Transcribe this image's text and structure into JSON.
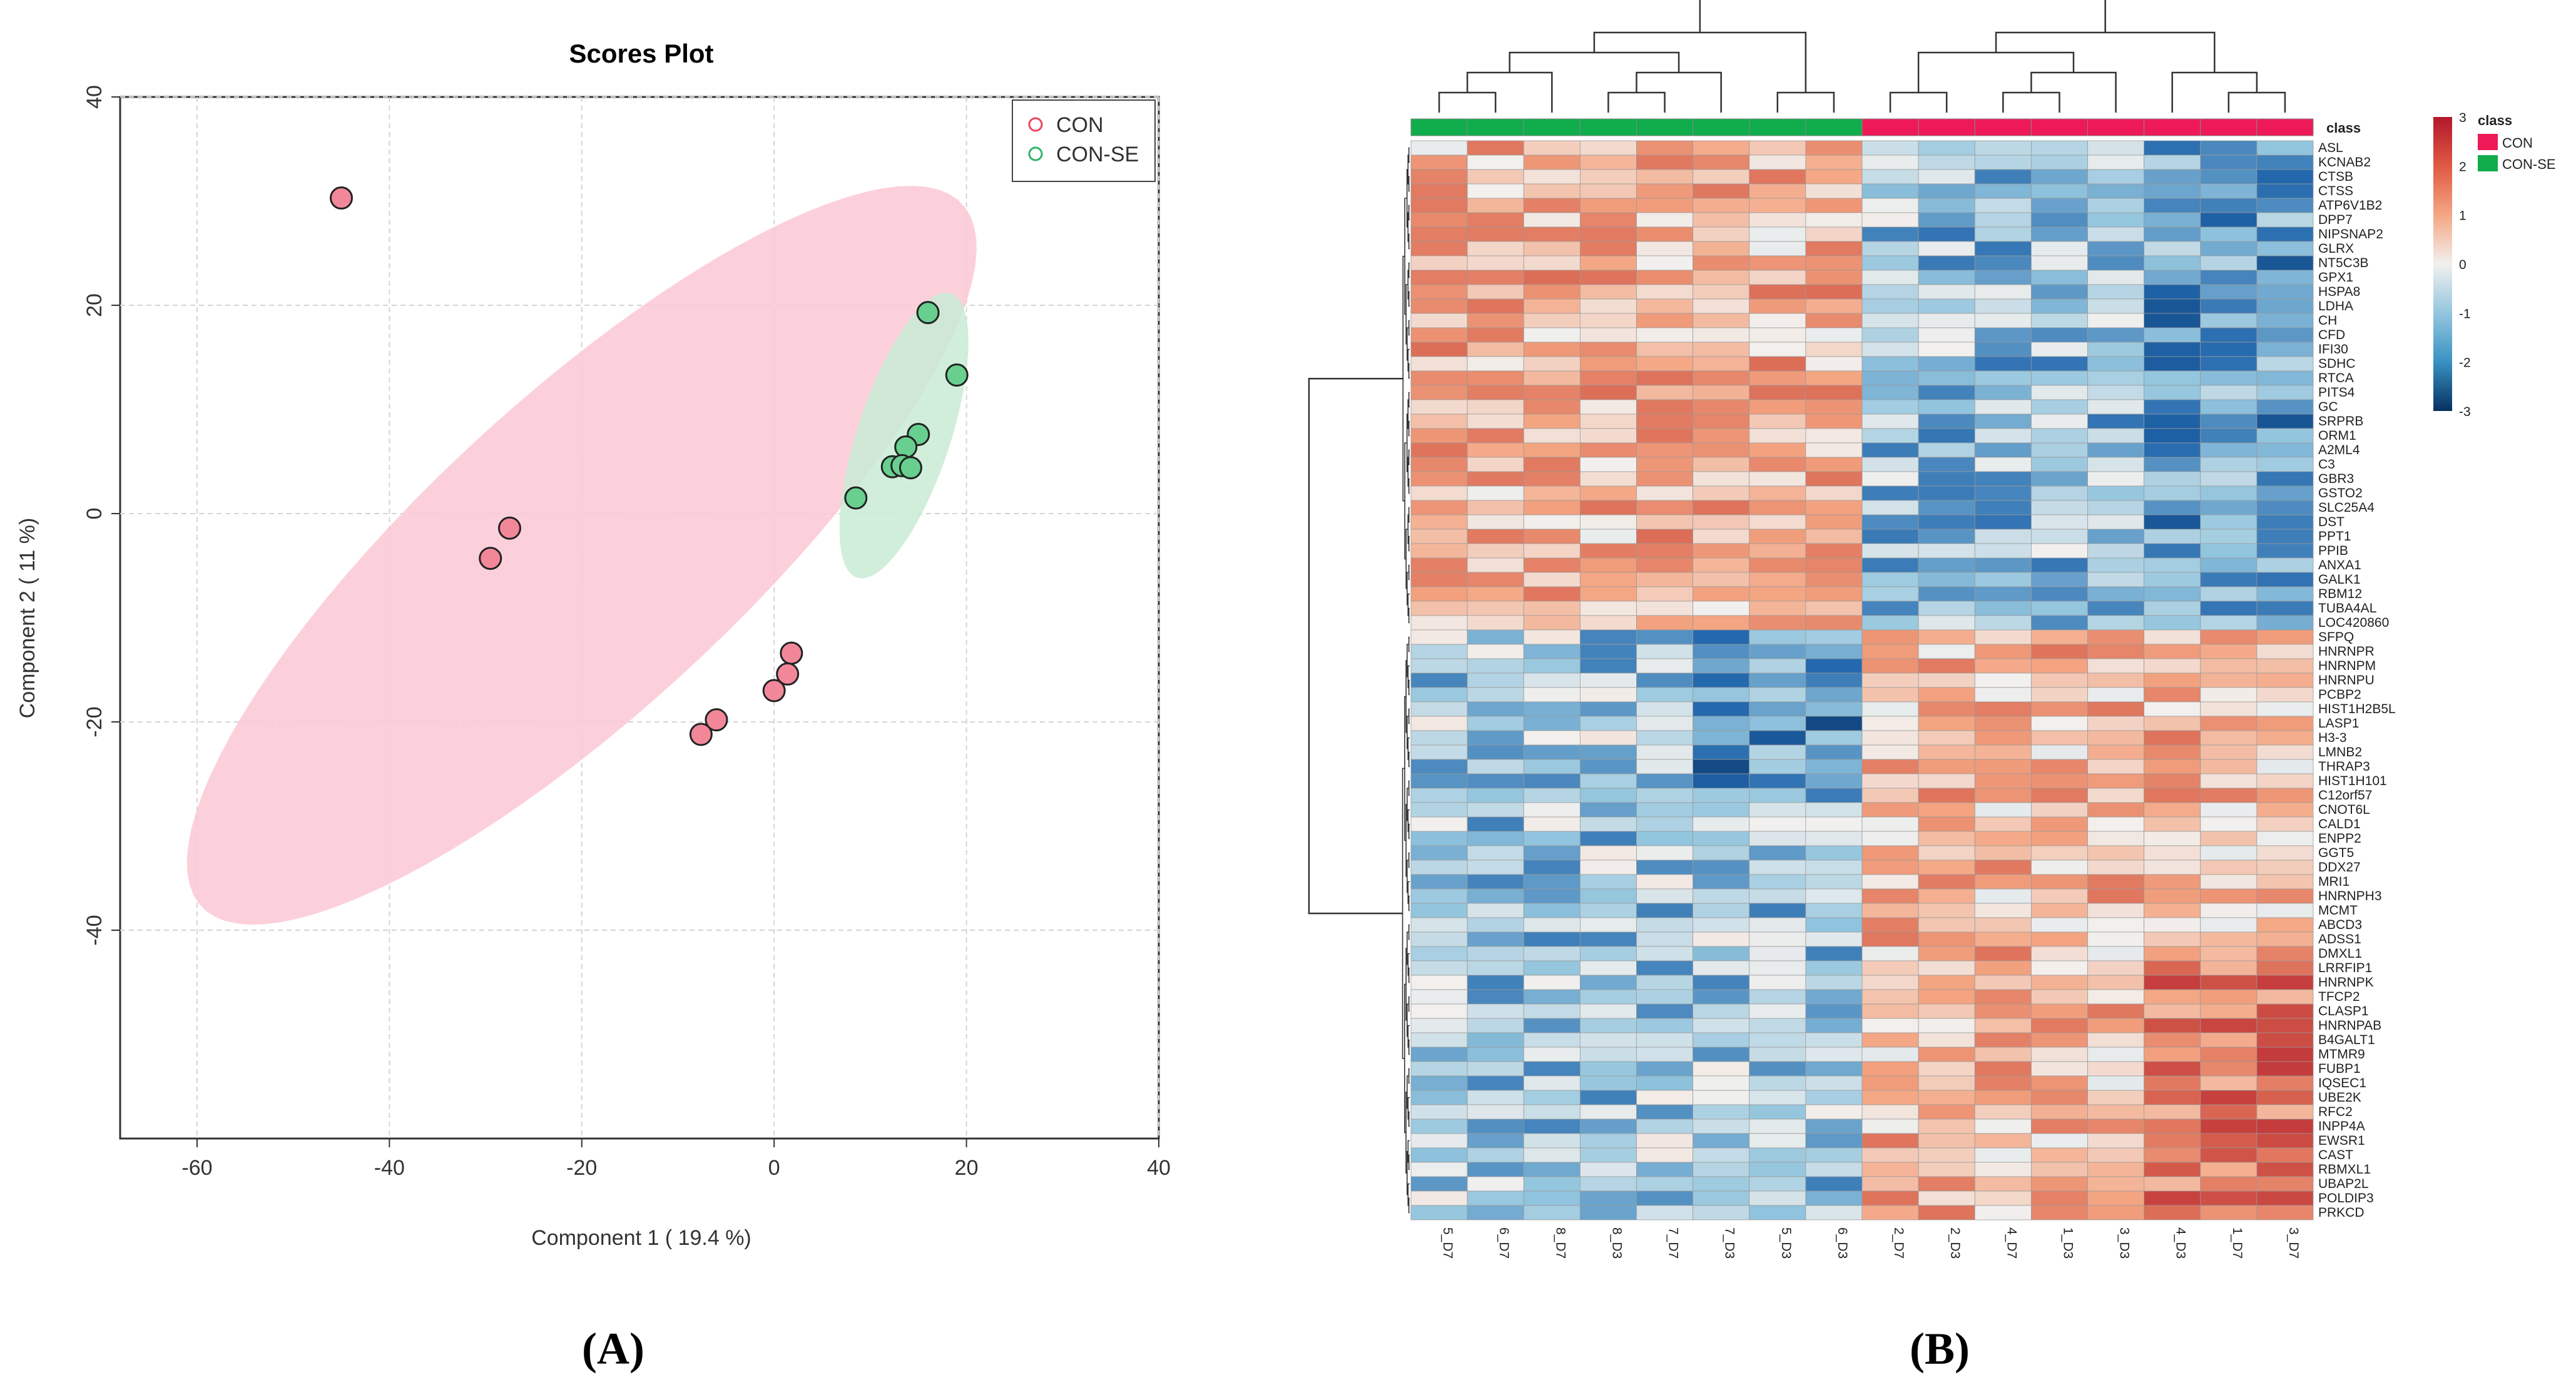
{
  "figure": {
    "panel_labels": [
      "(A)",
      "(B)"
    ]
  },
  "chart_data": [
    {
      "type": "scatter",
      "title": "Scores Plot",
      "xlabel": "Component 1 ( 19.4 %)",
      "ylabel": "Component 2 ( 11 %)",
      "xlim": [
        -68,
        40
      ],
      "ylim": [
        -60,
        40
      ],
      "xticks": [
        -60,
        -40,
        -20,
        0,
        20,
        40
      ],
      "yticks": [
        -40,
        -20,
        0,
        20,
        40
      ],
      "grid": true,
      "legend_position": "top-right",
      "series": [
        {
          "name": "CON",
          "color": "#f3879a",
          "legend_color": "#e8475f",
          "ellipse": {
            "center": [
              -20,
              -4
            ],
            "semi_major": 52,
            "semi_minor": 15.5,
            "angle_deg": 40
          },
          "points": [
            [
              -45,
              30.3
            ],
            [
              -27.5,
              -1.4
            ],
            [
              -29.5,
              -4.3
            ],
            [
              1.8,
              -13.4
            ],
            [
              1.4,
              -15.4
            ],
            [
              0,
              -17
            ],
            [
              -6,
              -19.8
            ],
            [
              -7.6,
              -21.2
            ]
          ]
        },
        {
          "name": "CON-SE",
          "color": "#68cf8e",
          "legend_color": "#2fb567",
          "ellipse": {
            "center": [
              13.5,
              7.5
            ],
            "semi_major": 14.5,
            "semi_minor": 4.8,
            "angle_deg": 70
          },
          "points": [
            [
              16,
              19.3
            ],
            [
              19,
              13.3
            ],
            [
              15,
              7.6
            ],
            [
              13.7,
              6.4
            ],
            [
              12.3,
              4.5
            ],
            [
              13.3,
              4.6
            ],
            [
              14.2,
              4.4
            ],
            [
              8.5,
              1.5
            ]
          ]
        }
      ]
    },
    {
      "type": "heatmap",
      "title": "",
      "class_label": "class",
      "columns": [
        "5_D7",
        "6_D7",
        "8_D7",
        "8_D3",
        "7_D7",
        "7_D3",
        "5_D3",
        "6_D3",
        "2_D7",
        "2_D3",
        "4_D7",
        "1_D3",
        "3_D3",
        "4_D3",
        "1_D7",
        "3_D7"
      ],
      "column_classes": [
        "CON-SE",
        "CON-SE",
        "CON-SE",
        "CON-SE",
        "CON-SE",
        "CON-SE",
        "CON-SE",
        "CON-SE",
        "CON",
        "CON",
        "CON",
        "CON",
        "CON",
        "CON",
        "CON",
        "CON"
      ],
      "rows": [
        "ASL",
        "KCNAB2",
        "CTSB",
        "CTSS",
        "ATP6V1B2",
        "DPP7",
        "NIPSNAP2",
        "GLRX",
        "NT5C3B",
        "GPX1",
        "HSPA8",
        "LDHA",
        "CH",
        "CFD",
        "IFI30",
        "SDHC",
        "RTCA",
        "PITS4",
        "GC",
        "SRPRB",
        "ORM1",
        "A2ML4",
        "C3",
        "GBR3",
        "GSTO2",
        "SLC25A4",
        "DST",
        "PPT1",
        "PPIB",
        "ANXA1",
        "GALK1",
        "RBM12",
        "TUBA4AL",
        "LOC420860",
        "SFPQ",
        "HNRNPR",
        "HNRNPM",
        "HNRNPU",
        "PCBP2",
        "HIST1H2B5L",
        "LASP1",
        "H3-3",
        "LMNB2",
        "THRAP3",
        "HIST1H101",
        "C12orf57",
        "CNOT6L",
        "CALD1",
        "ENPP2",
        "GGT5",
        "DDX27",
        "MRI1",
        "HNRNPH3",
        "MCMT",
        "ABCD3",
        "ADSS1",
        "DMXL1",
        "LRRFIP1",
        "HNRNPK",
        "TFCP2",
        "CLASP1",
        "HNRNPAB",
        "B4GALT1",
        "MTMR9",
        "FUBP1",
        "IQSEC1",
        "UBE2K",
        "RFC2",
        "INPP4A",
        "EWSR1",
        "CAST",
        "RBMXL1",
        "UBAP2L",
        "POLDIP3",
        "PRKCD"
      ],
      "row_group_split": 34,
      "values": [],
      "colorbar": {
        "min": -3,
        "max": 3,
        "ticks": [
          "3",
          "2",
          "1",
          "0",
          "-1",
          "-2",
          "-3"
        ]
      },
      "legend": {
        "title": "class",
        "entries": [
          {
            "label": "CON",
            "color": "#ed1a57"
          },
          {
            "label": "CON-SE",
            "color": "#11ac4c"
          }
        ]
      }
    }
  ]
}
